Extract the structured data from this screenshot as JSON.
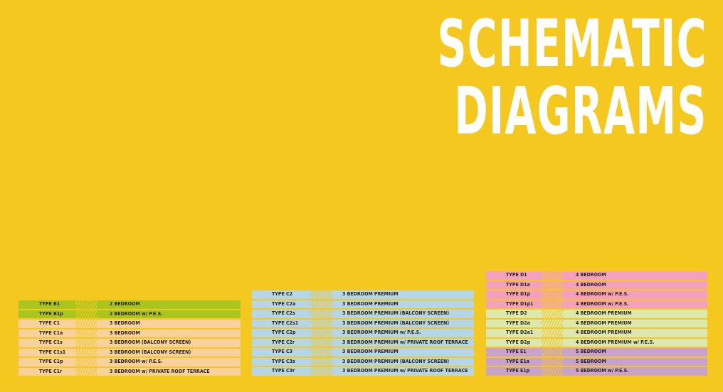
{
  "title": {
    "line1": "SCHEMATIC",
    "line2": "DIAGRAMS"
  },
  "colors": {
    "background": "#F5C820",
    "green": "#A8C61E",
    "peach": "#F8D29A",
    "blue": "#B5D6E6",
    "pink": "#F4A0BE",
    "lightgreen": "#DDE8B0",
    "lavender": "#C9A2CC"
  },
  "tables": [
    {
      "rows": [
        {
          "type": "TYPE B1",
          "desc": "2 BEDROOM",
          "color": "#A8C61E"
        },
        {
          "type": "TYPE B1p",
          "desc": "2 BEDROOM  w/ P.E.S.",
          "color": "#A8C61E"
        },
        {
          "type": "TYPE C1",
          "desc": "3 BEDROOM",
          "color": "#F8D29A"
        },
        {
          "type": "TYPE C1a",
          "desc": "3 BEDROOM",
          "color": "#F8D29A"
        },
        {
          "type": "TYPE C1s",
          "desc": "3 BEDROOM (BALCONY SCREEN)",
          "color": "#F8D29A"
        },
        {
          "type": "TYPE C1s1",
          "desc": "3 BEDROOM (BALCONY SCREEN)",
          "color": "#F8D29A"
        },
        {
          "type": "TYPE C1p",
          "desc": "3 BEDROOM w/ P.E.S.",
          "color": "#F8D29A"
        },
        {
          "type": "TYPE C1r",
          "desc": "3 BEDROOM w/ PRIVATE ROOF TERRACE",
          "color": "#F8D29A"
        }
      ]
    },
    {
      "rows": [
        {
          "type": "TYPE C2",
          "desc": "3 BEDROOM PREMIUM",
          "color": "#B5D6E6"
        },
        {
          "type": "TYPE C2a",
          "desc": "3 BEDROOM PREMIUM",
          "color": "#B5D6E6"
        },
        {
          "type": "TYPE C2s",
          "desc": "3 BEDROOM PREMIUM (BALCONY SCREEN)",
          "color": "#B5D6E6"
        },
        {
          "type": "TYPE C2s1",
          "desc": "3 BEDROOM PREMIUM (BALCONY SCREEN)",
          "color": "#B5D6E6"
        },
        {
          "type": "TYPE C2p",
          "desc": "3 BEDROOM PREMIUM w/ P.E.S.",
          "color": "#B5D6E6"
        },
        {
          "type": "TYPE C2r",
          "desc": "3 BEDROOM PREMIUM w/ PRIVATE ROOF TERRACE",
          "color": "#B5D6E6"
        },
        {
          "type": "TYPE C3",
          "desc": "3 BEDROOM PREMIUM",
          "color": "#B5D6E6"
        },
        {
          "type": "TYPE C3s",
          "desc": "3 BEDROOM PREMIUM (BALCONY SCREEN)",
          "color": "#B5D6E6"
        },
        {
          "type": "TYPE C3r",
          "desc": "3 BEDROOM PREMIUM w/ PRIVATE ROOF TERRACE",
          "color": "#B5D6E6"
        }
      ]
    },
    {
      "rows": [
        {
          "type": "TYPE D1",
          "desc": "4 BEDROOM",
          "color": "#F4A0BE"
        },
        {
          "type": "TYPE D1a",
          "desc": "4 BEDROOM",
          "color": "#F4A0BE"
        },
        {
          "type": "TYPE D1p",
          "desc": "4 BEDROOM w/ P.E.S.",
          "color": "#F4A0BE"
        },
        {
          "type": "TYPE D1p1",
          "desc": "4 BEDROOM w/ P.E.S.",
          "color": "#F4A0BE"
        },
        {
          "type": "TYPE D2",
          "desc": "4 BEDROOM PREMIUM",
          "color": "#DDE8B0"
        },
        {
          "type": "TYPE D2a",
          "desc": "4 BEDROOM PREMIUM",
          "color": "#DDE8B0"
        },
        {
          "type": "TYPE D2a1",
          "desc": "4 BEDROOM PREMIUM",
          "color": "#DDE8B0"
        },
        {
          "type": "TYPE D2p",
          "desc": "4 BEDROOM PREMIUM w/ P.E.S.",
          "color": "#DDE8B0"
        },
        {
          "type": "TYPE E1",
          "desc": "5 BEDROOM",
          "color": "#C9A2CC"
        },
        {
          "type": "TYPE E1a",
          "desc": "5 BEDROOM",
          "color": "#C9A2CC"
        },
        {
          "type": "TYPE E1p",
          "desc": "5 BEDROOM w/ P.E.S.",
          "color": "#C9A2CC"
        }
      ]
    }
  ]
}
